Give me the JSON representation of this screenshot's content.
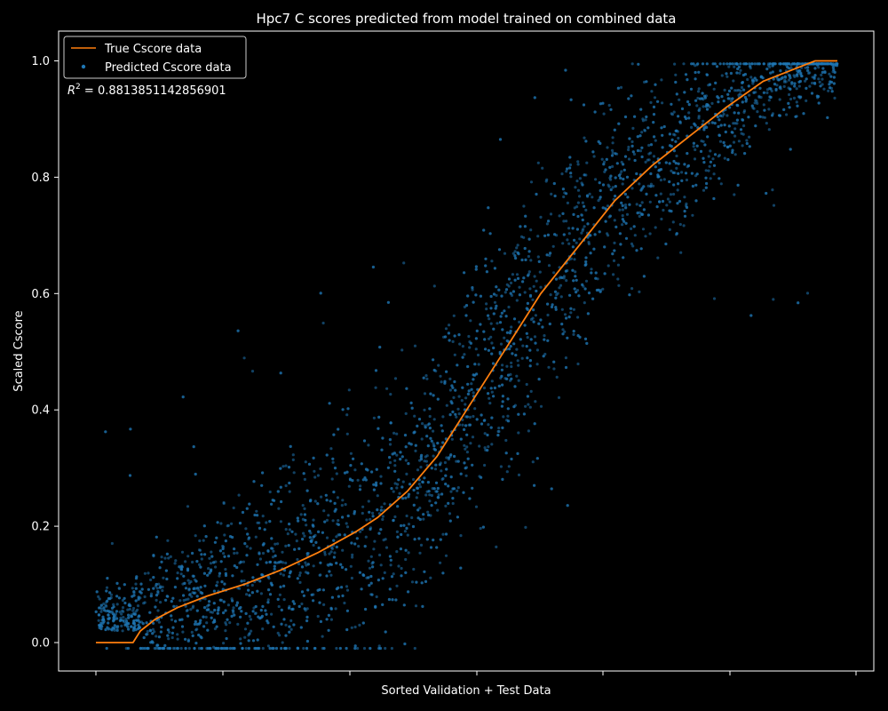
{
  "chart_data": {
    "type": "scatter",
    "title": "Hpc7 C scores predicted from model trained on combined data",
    "xlabel": "Sorted Validation + Test Data",
    "ylabel": "Scaled Cscore",
    "ylim": [
      -0.05,
      1.05
    ],
    "y_ticks": [
      "0.0",
      "0.2",
      "0.4",
      "0.6",
      "0.8",
      "1.0"
    ],
    "x_tick_labels": "none",
    "grid": false,
    "legend_position": "top-left",
    "annotation": "R² = 0.8813851142856901",
    "annotation_parts": {
      "base": "R",
      "sup": "2",
      "rest": " = 0.8813851142856901"
    },
    "colors": {
      "background": "#000000",
      "true": "#ff7f0e",
      "predicted": "#1f77b4",
      "text": "#ffffff"
    },
    "series": [
      {
        "name": "True Cscore data",
        "kind": "line",
        "points": [
          [
            0,
            0.0
          ],
          [
            0.05,
            0.0
          ],
          [
            0.06,
            0.02
          ],
          [
            0.08,
            0.04
          ],
          [
            0.11,
            0.06
          ],
          [
            0.15,
            0.08
          ],
          [
            0.2,
            0.1
          ],
          [
            0.25,
            0.125
          ],
          [
            0.3,
            0.155
          ],
          [
            0.35,
            0.19
          ],
          [
            0.38,
            0.215
          ],
          [
            0.42,
            0.26
          ],
          [
            0.46,
            0.32
          ],
          [
            0.5,
            0.4
          ],
          [
            0.55,
            0.5
          ],
          [
            0.6,
            0.6
          ],
          [
            0.65,
            0.68
          ],
          [
            0.7,
            0.76
          ],
          [
            0.75,
            0.82
          ],
          [
            0.8,
            0.87
          ],
          [
            0.85,
            0.92
          ],
          [
            0.9,
            0.965
          ],
          [
            0.97,
            1.0
          ],
          [
            1.0,
            1.0
          ]
        ]
      },
      {
        "name": "Predicted Cscore data",
        "kind": "scatter",
        "points": []
      }
    ]
  }
}
